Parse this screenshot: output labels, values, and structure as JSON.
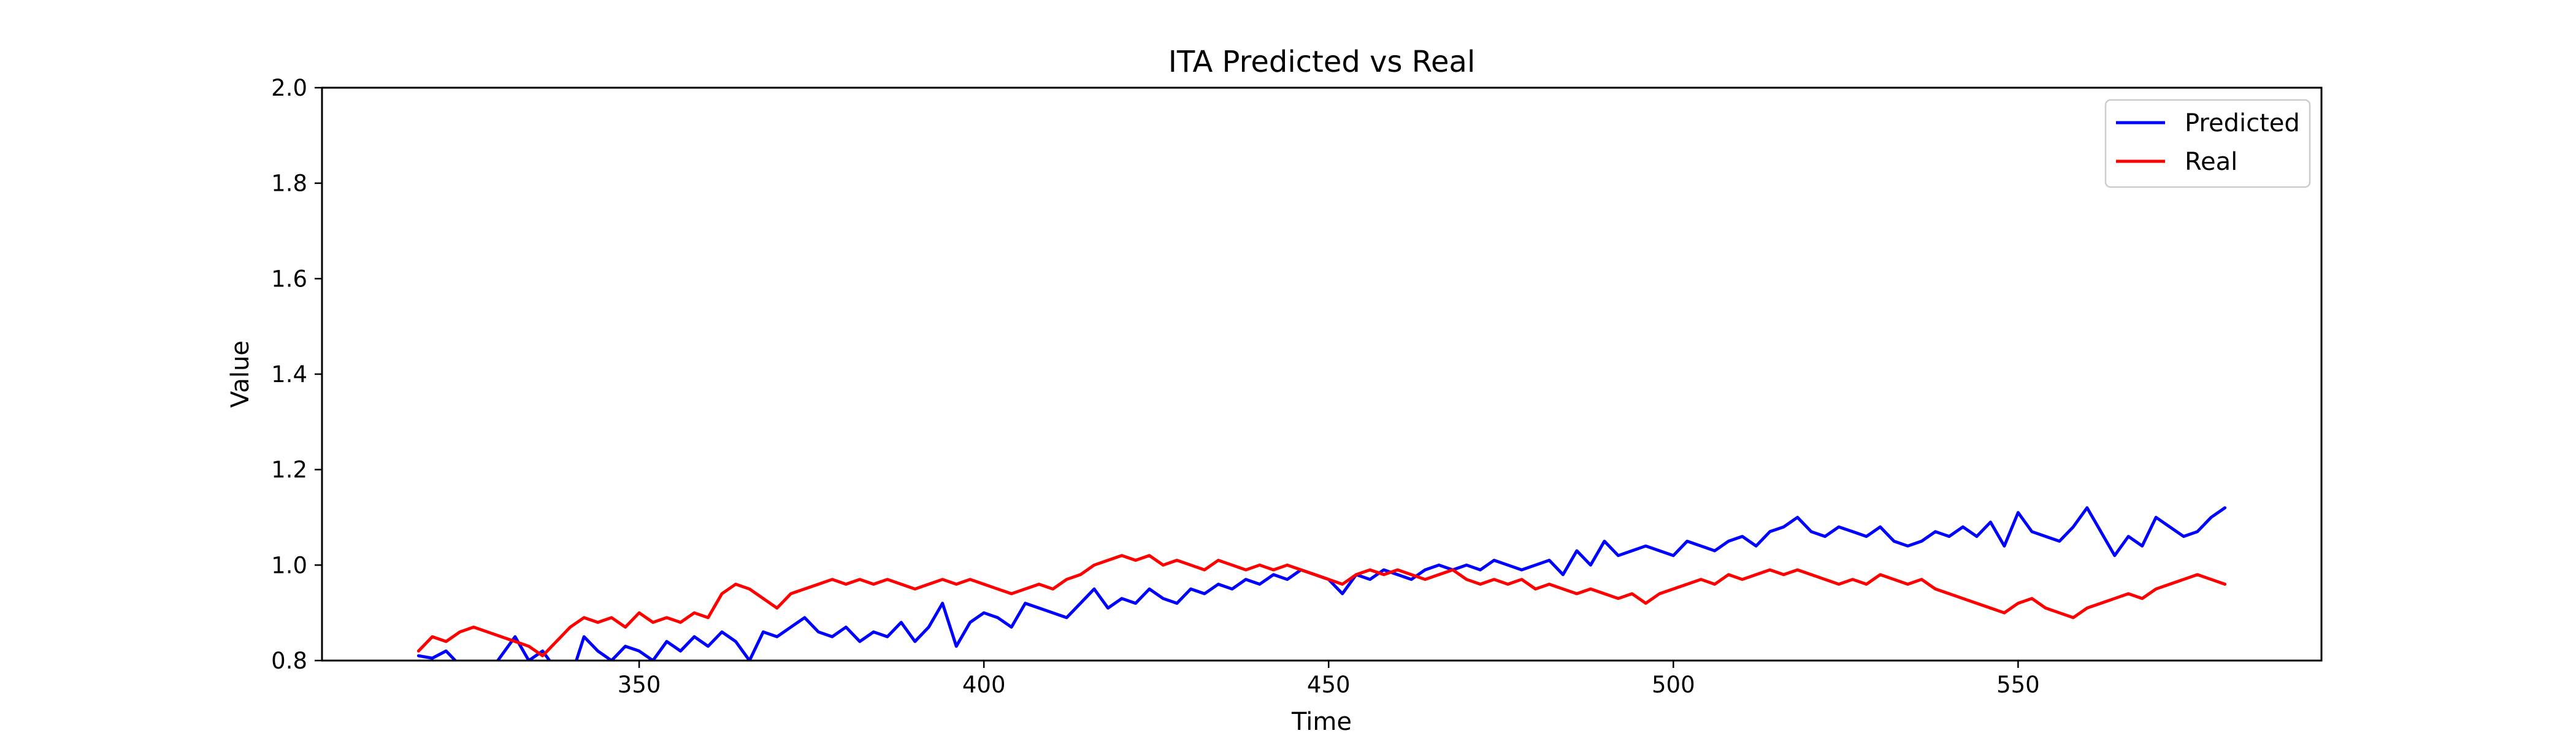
{
  "chart_data": {
    "type": "line",
    "title": "ITA Predicted vs Real",
    "xlabel": "Time",
    "ylabel": "Value",
    "xlim": [
      304,
      594
    ],
    "ylim": [
      0.8,
      2.0
    ],
    "xticks": [
      350,
      400,
      450,
      500,
      550
    ],
    "yticks": [
      0.8,
      1.0,
      1.2,
      1.4,
      1.6,
      1.8,
      2.0
    ],
    "xtick_labels": [
      "350",
      "400",
      "450",
      "500",
      "550"
    ],
    "ytick_labels": [
      "0.8",
      "1.0",
      "1.2",
      "1.4",
      "1.6",
      "1.8",
      "2.0"
    ],
    "grid": false,
    "legend_position": "top-right",
    "series": [
      {
        "name": "Predicted",
        "color": "#0000ff",
        "x": [
          318,
          320,
          322,
          324,
          326,
          328,
          330,
          332,
          334,
          336,
          338,
          340,
          342,
          344,
          346,
          348,
          350,
          352,
          354,
          356,
          358,
          360,
          362,
          364,
          366,
          368,
          370,
          372,
          374,
          376,
          378,
          380,
          382,
          384,
          386,
          388,
          390,
          392,
          394,
          396,
          398,
          400,
          402,
          404,
          406,
          408,
          410,
          412,
          414,
          416,
          418,
          420,
          422,
          424,
          426,
          428,
          430,
          432,
          434,
          436,
          438,
          440,
          442,
          444,
          446,
          448,
          450,
          452,
          454,
          456,
          458,
          460,
          462,
          464,
          466,
          468,
          470,
          472,
          474,
          476,
          478,
          480,
          482,
          484,
          486,
          488,
          490,
          492,
          494,
          496,
          498,
          500,
          502,
          504,
          506,
          508,
          510,
          512,
          514,
          516,
          518,
          520,
          522,
          524,
          526,
          528,
          530,
          532,
          534,
          536,
          538,
          540,
          542,
          544,
          546,
          548,
          550,
          552,
          554,
          556,
          558,
          560,
          562,
          564,
          566,
          568,
          570,
          572,
          574,
          576,
          578,
          580
        ],
        "y": [
          0.81,
          0.805,
          0.82,
          0.79,
          0.78,
          0.77,
          0.81,
          0.85,
          0.8,
          0.82,
          0.78,
          0.76,
          0.85,
          0.82,
          0.8,
          0.83,
          0.82,
          0.8,
          0.84,
          0.82,
          0.85,
          0.83,
          0.86,
          0.84,
          0.8,
          0.86,
          0.85,
          0.87,
          0.89,
          0.86,
          0.85,
          0.87,
          0.84,
          0.86,
          0.85,
          0.88,
          0.84,
          0.87,
          0.92,
          0.83,
          0.88,
          0.9,
          0.89,
          0.87,
          0.92,
          0.91,
          0.9,
          0.89,
          0.92,
          0.95,
          0.91,
          0.93,
          0.92,
          0.95,
          0.93,
          0.92,
          0.95,
          0.94,
          0.96,
          0.95,
          0.97,
          0.96,
          0.98,
          0.97,
          0.99,
          0.98,
          0.97,
          0.94,
          0.98,
          0.97,
          0.99,
          0.98,
          0.97,
          0.99,
          1.0,
          0.99,
          1.0,
          0.99,
          1.01,
          1.0,
          0.99,
          1.0,
          1.01,
          0.98,
          1.03,
          1.0,
          1.05,
          1.02,
          1.03,
          1.04,
          1.03,
          1.02,
          1.05,
          1.04,
          1.03,
          1.05,
          1.06,
          1.04,
          1.07,
          1.08,
          1.1,
          1.07,
          1.06,
          1.08,
          1.07,
          1.06,
          1.08,
          1.05,
          1.04,
          1.05,
          1.07,
          1.06,
          1.08,
          1.06,
          1.09,
          1.04,
          1.11,
          1.07,
          1.06,
          1.05,
          1.08,
          1.12,
          1.07,
          1.02,
          1.06,
          1.04,
          1.1,
          1.08,
          1.06,
          1.07,
          1.1,
          1.12
        ]
      },
      {
        "name": "Real",
        "color": "#ff0000",
        "x": [
          318,
          320,
          322,
          324,
          326,
          328,
          330,
          332,
          334,
          336,
          338,
          340,
          342,
          344,
          346,
          348,
          350,
          352,
          354,
          356,
          358,
          360,
          362,
          364,
          366,
          368,
          370,
          372,
          374,
          376,
          378,
          380,
          382,
          384,
          386,
          388,
          390,
          392,
          394,
          396,
          398,
          400,
          402,
          404,
          406,
          408,
          410,
          412,
          414,
          416,
          418,
          420,
          422,
          424,
          426,
          428,
          430,
          432,
          434,
          436,
          438,
          440,
          442,
          444,
          446,
          448,
          450,
          452,
          454,
          456,
          458,
          460,
          462,
          464,
          466,
          468,
          470,
          472,
          474,
          476,
          478,
          480,
          482,
          484,
          486,
          488,
          490,
          492,
          494,
          496,
          498,
          500,
          502,
          504,
          506,
          508,
          510,
          512,
          514,
          516,
          518,
          520,
          522,
          524,
          526,
          528,
          530,
          532,
          534,
          536,
          538,
          540,
          542,
          544,
          546,
          548,
          550,
          552,
          554,
          556,
          558,
          560,
          562,
          564,
          566,
          568,
          570,
          572,
          574,
          576,
          578,
          580
        ],
        "y": [
          0.82,
          0.85,
          0.84,
          0.86,
          0.87,
          0.86,
          0.85,
          0.84,
          0.83,
          0.81,
          0.84,
          0.87,
          0.89,
          0.88,
          0.89,
          0.87,
          0.9,
          0.88,
          0.89,
          0.88,
          0.9,
          0.89,
          0.94,
          0.96,
          0.95,
          0.93,
          0.91,
          0.94,
          0.95,
          0.96,
          0.97,
          0.96,
          0.97,
          0.96,
          0.97,
          0.96,
          0.95,
          0.96,
          0.97,
          0.96,
          0.97,
          0.96,
          0.95,
          0.94,
          0.95,
          0.96,
          0.95,
          0.97,
          0.98,
          1.0,
          1.01,
          1.02,
          1.01,
          1.02,
          1.0,
          1.01,
          1.0,
          0.99,
          1.01,
          1.0,
          0.99,
          1.0,
          0.99,
          1.0,
          0.99,
          0.98,
          0.97,
          0.96,
          0.98,
          0.99,
          0.98,
          0.99,
          0.98,
          0.97,
          0.98,
          0.99,
          0.97,
          0.96,
          0.97,
          0.96,
          0.97,
          0.95,
          0.96,
          0.95,
          0.94,
          0.95,
          0.94,
          0.93,
          0.94,
          0.92,
          0.94,
          0.95,
          0.96,
          0.97,
          0.96,
          0.98,
          0.97,
          0.98,
          0.99,
          0.98,
          0.99,
          0.98,
          0.97,
          0.96,
          0.97,
          0.96,
          0.98,
          0.97,
          0.96,
          0.97,
          0.95,
          0.94,
          0.93,
          0.92,
          0.91,
          0.9,
          0.92,
          0.93,
          0.91,
          0.9,
          0.89,
          0.91,
          0.92,
          0.93,
          0.94,
          0.93,
          0.95,
          0.96,
          0.97,
          0.98,
          0.97,
          0.96
        ]
      }
    ]
  }
}
